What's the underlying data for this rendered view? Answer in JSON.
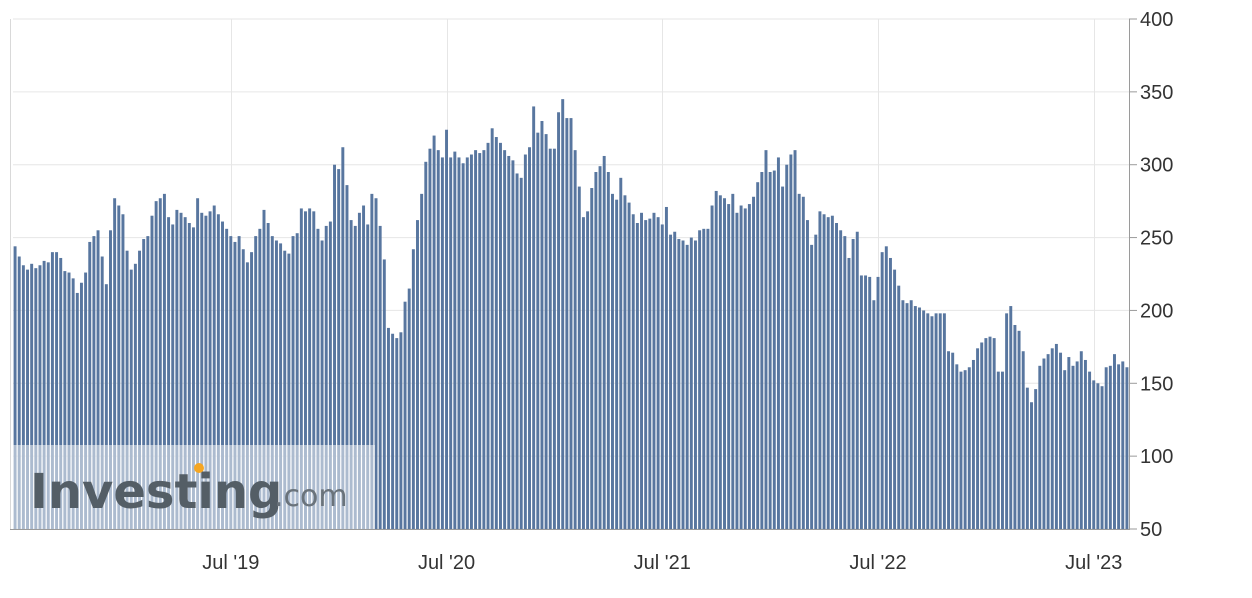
{
  "chart_data": {
    "type": "bar",
    "title": "",
    "xlabel": "",
    "ylabel": "",
    "ylim": [
      50,
      400
    ],
    "yticks": [
      50,
      100,
      150,
      200,
      250,
      300,
      350,
      400
    ],
    "x_tick_labels": [
      "Jul '19",
      "Jul '20",
      "Jul '21",
      "Jul '22",
      "Jul '23"
    ],
    "x_tick_index": [
      52,
      104,
      156,
      208,
      260
    ],
    "grid": true,
    "y_axis_side": "right",
    "bar_color": "#58769f",
    "grid_color": "#e6e6e6",
    "series": [
      {
        "values": [
          244,
          237,
          231,
          228,
          232,
          229,
          231,
          234,
          233,
          240,
          240,
          236,
          227,
          226,
          222,
          212,
          219,
          226,
          247,
          251,
          255,
          237,
          218,
          255,
          277,
          272,
          266,
          241,
          228,
          232,
          241,
          249,
          251,
          265,
          275,
          277,
          280,
          264,
          259,
          269,
          267,
          264,
          260,
          257,
          277,
          267,
          265,
          268,
          272,
          266,
          261,
          256,
          251,
          247,
          251,
          242,
          233,
          240,
          251,
          256,
          269,
          260,
          251,
          248,
          246,
          241,
          239,
          251,
          253,
          270,
          268,
          270,
          268,
          256,
          248,
          258,
          261,
          300,
          297,
          312,
          286,
          262,
          258,
          267,
          272,
          259,
          280,
          277,
          258,
          235,
          188,
          184,
          181,
          185,
          206,
          215,
          242,
          262,
          280,
          302,
          311,
          320,
          310,
          305,
          324,
          305,
          309,
          305,
          301,
          305,
          307,
          310,
          308,
          310,
          315,
          325,
          319,
          315,
          310,
          306,
          303,
          294,
          291,
          307,
          312,
          340,
          322,
          330,
          321,
          311,
          311,
          336,
          345,
          332,
          332,
          310,
          285,
          264,
          268,
          284,
          295,
          299,
          306,
          295,
          280,
          276,
          291,
          279,
          274,
          266,
          260,
          267,
          262,
          263,
          267,
          264,
          259,
          271,
          252,
          254,
          249,
          248,
          245,
          250,
          248,
          255,
          256,
          256,
          272,
          282,
          279,
          277,
          273,
          280,
          267,
          272,
          270,
          273,
          278,
          288,
          295,
          310,
          295,
          296,
          305,
          285,
          300,
          307,
          310,
          280,
          278,
          262,
          245,
          252,
          268,
          266,
          264,
          265,
          260,
          255,
          251,
          236,
          249,
          254,
          224,
          224,
          223,
          207,
          223,
          240,
          244,
          236,
          228,
          217,
          207,
          205,
          207,
          203,
          202,
          200,
          198,
          196,
          198,
          198,
          198,
          172,
          171,
          163,
          158,
          159,
          161,
          166,
          174,
          178,
          181,
          182,
          181,
          158,
          158,
          198,
          203,
          190,
          186,
          172,
          147,
          137,
          146,
          162,
          167,
          170,
          174,
          177,
          171,
          159,
          168,
          162,
          165,
          172,
          166,
          158,
          152,
          150,
          148,
          161,
          162,
          170,
          163,
          165,
          161
        ]
      }
    ]
  },
  "watermark": {
    "brand": "Investing",
    "suffix": ".com",
    "accent_color": "#f5a623"
  }
}
